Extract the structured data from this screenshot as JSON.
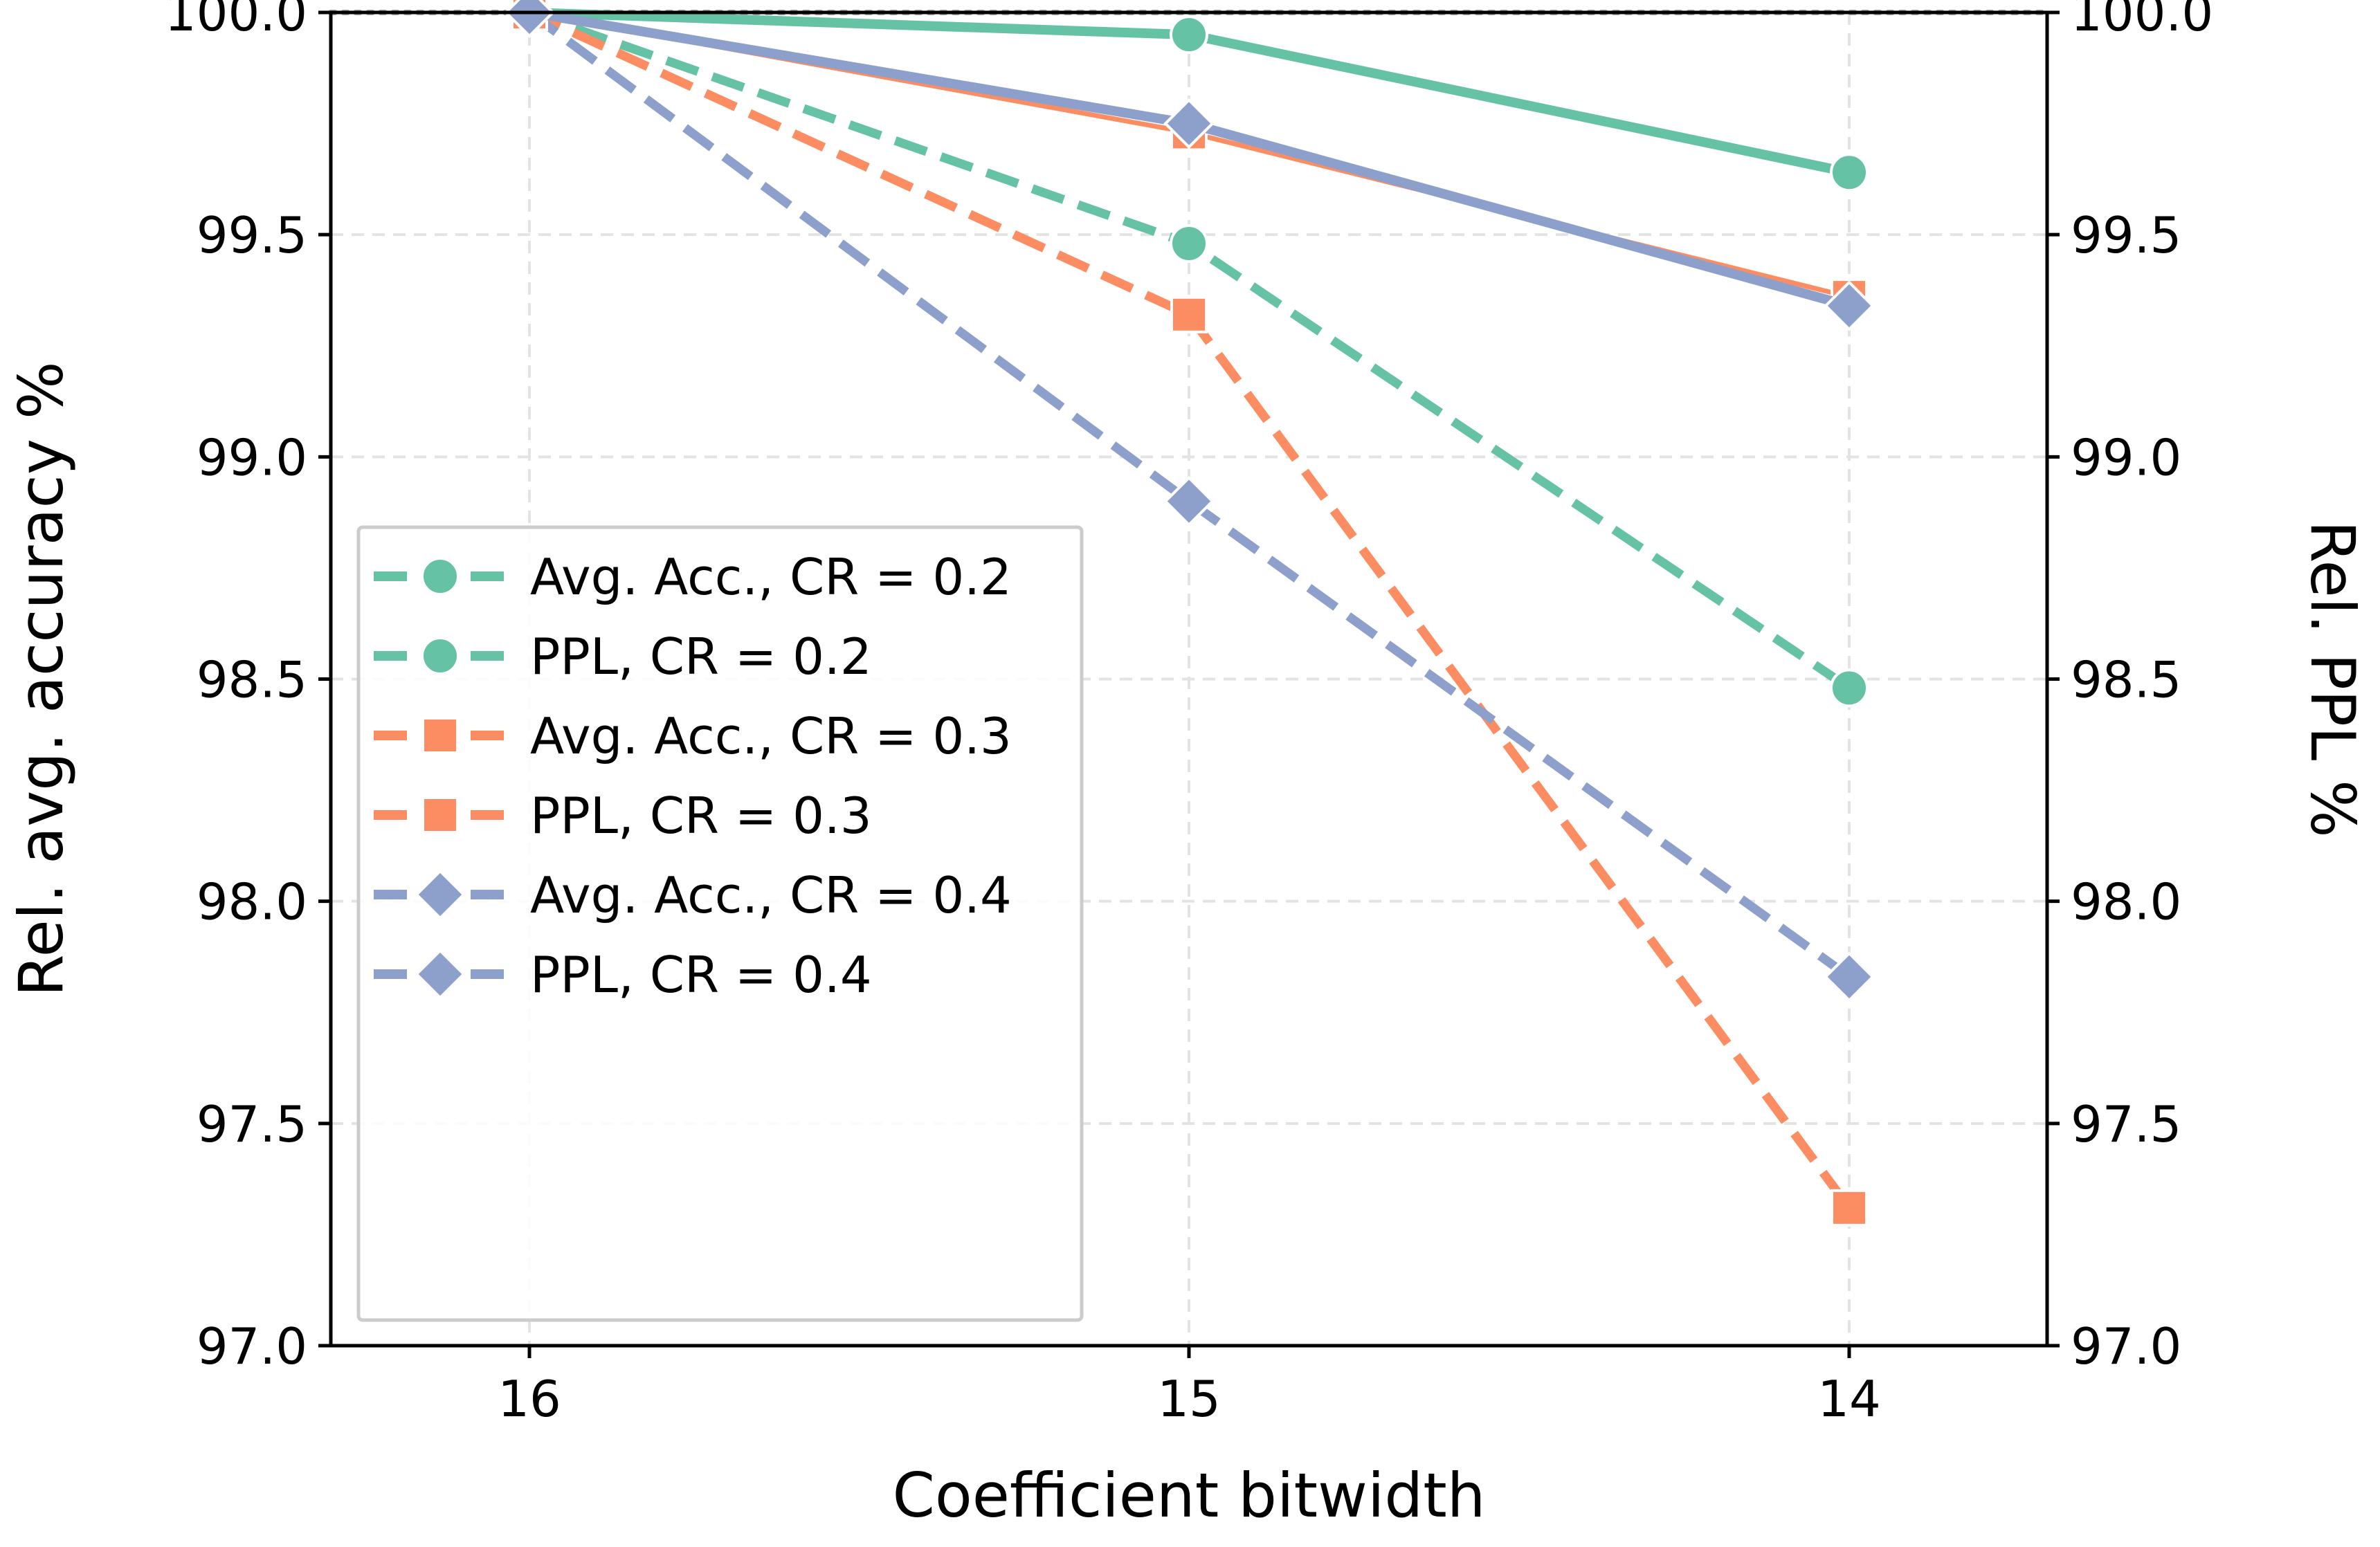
{
  "chart_data": {
    "type": "line",
    "xlabel": "Coefficient bitwidth",
    "ylabel_left": "Rel. avg. accuracy %",
    "ylabel_right": "Rel. PPL %",
    "categories": [
      "16",
      "15",
      "14"
    ],
    "ylim": [
      97.0,
      100.0
    ],
    "yticks": [
      "97.0",
      "97.5",
      "98.0",
      "98.5",
      "99.0",
      "99.5",
      "100.0"
    ],
    "yticks_values": [
      97.0,
      97.5,
      98.0,
      98.5,
      99.0,
      99.5,
      100.0
    ],
    "reference_line": 100.0,
    "grid": true,
    "legend_position": "lower-left",
    "series": [
      {
        "name": "Avg. Acc., CR = 0.2",
        "values": [
          100.0,
          99.95,
          99.64
        ],
        "color": "#66c2a5",
        "style": "solid",
        "marker": "circle"
      },
      {
        "name": "PPL, CR = 0.2",
        "values": [
          100.0,
          99.48,
          98.48
        ],
        "color": "#66c2a5",
        "style": "dashed",
        "marker": "circle"
      },
      {
        "name": "Avg. Acc., CR = 0.3",
        "values": [
          100.0,
          99.73,
          99.36
        ],
        "color": "#fc8d62",
        "style": "solid",
        "marker": "square"
      },
      {
        "name": "PPL, CR = 0.3",
        "values": [
          100.0,
          99.32,
          97.31
        ],
        "color": "#fc8d62",
        "style": "dashed",
        "marker": "square"
      },
      {
        "name": "Avg. Acc., CR = 0.4",
        "values": [
          100.0,
          99.75,
          99.34
        ],
        "color": "#8da0cb",
        "style": "solid",
        "marker": "diamond"
      },
      {
        "name": "PPL, CR = 0.4",
        "values": [
          100.0,
          98.9,
          97.83
        ],
        "color": "#8da0cb",
        "style": "dashed",
        "marker": "diamond"
      }
    ]
  }
}
